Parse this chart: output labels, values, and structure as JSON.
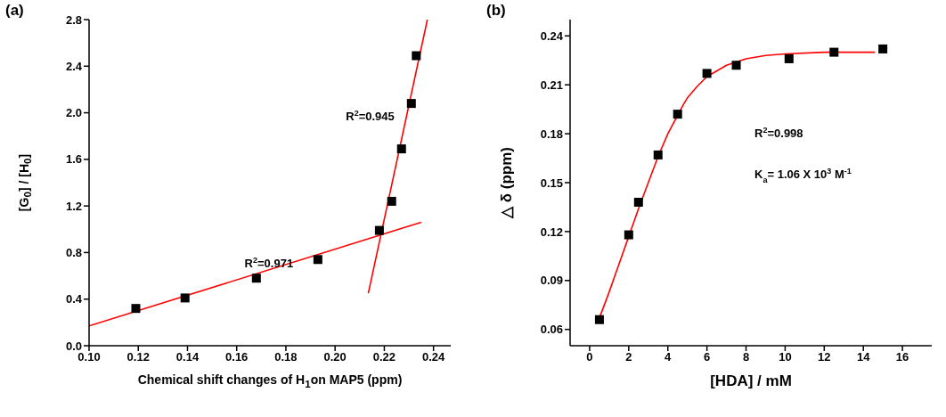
{
  "chart_data": [
    {
      "type": "scatter",
      "title": "(a)",
      "xlabel": "Chemical shift changes of H$_{1}$on MAP5 (ppm)",
      "ylabel": "[G$_{0}$] / [H$_{0}$]",
      "xlim": [
        0.1,
        0.247
      ],
      "xticks": [
        {
          "value": 0.1,
          "label": "0.10"
        },
        0.12,
        0.14,
        0.16,
        0.18,
        {
          "value": 0.2,
          "label": "0.20"
        },
        0.22,
        0.24
      ],
      "ylim": [
        0,
        2.8
      ],
      "yticks": [
        {
          "value": 0,
          "label": "0.0"
        },
        0.4,
        0.8,
        1.2,
        1.6,
        {
          "value": 2,
          "label": "2.0"
        },
        2.4,
        2.8
      ],
      "marker": "square",
      "series": [
        {
          "color": "#000000",
          "x": [
            0.119,
            0.139,
            0.168,
            0.193,
            0.218,
            0.223,
            0.227,
            0.231,
            0.233
          ],
          "values": [
            0.32,
            0.41,
            0.58,
            0.74,
            0.99,
            1.24,
            1.69,
            2.08,
            2.49
          ]
        },
        {
          "type": "line",
          "color": "#ff0000",
          "marker": "none",
          "line_style": "solid",
          "x": [
            0.1,
            0.235
          ],
          "values": [
            0.17,
            1.06
          ]
        },
        {
          "type": "line",
          "color": "#ff0000",
          "marker": "none",
          "line_style": "solid",
          "x": [
            0.2135,
            0.2375
          ],
          "values": [
            0.45,
            2.8
          ]
        }
      ],
      "annotations": [
        "R$^{2}$=0.971",
        "R$^{2}$=0.945"
      ]
    },
    {
      "type": "scatter",
      "title": "(b)",
      "xlabel": "[HDA] / mM",
      "ylabel": "△ δ (ppm)",
      "xlim": [
        -1,
        17.5
      ],
      "xticks": [
        0,
        2,
        4,
        6,
        8,
        10,
        12,
        14,
        16
      ],
      "ylim": [
        0.05,
        0.25
      ],
      "yticks": [
        {
          "value": 0.06,
          "label": "0.06"
        },
        {
          "value": 0.09,
          "label": "0.09"
        },
        {
          "value": 0.12,
          "label": "0.12"
        },
        {
          "value": 0.15,
          "label": "0.15"
        },
        {
          "value": 0.18,
          "label": "0.18"
        },
        {
          "value": 0.21,
          "label": "0.21"
        },
        {
          "value": 0.24,
          "label": "0.24"
        }
      ],
      "marker": "square",
      "series": [
        {
          "color": "#000000",
          "x": [
            0.5,
            2,
            2.5,
            3.5,
            4.5,
            6,
            7.5,
            10.2,
            12.5,
            15
          ],
          "values": [
            0.066,
            0.118,
            0.138,
            0.167,
            0.192,
            0.217,
            0.222,
            0.226,
            0.23,
            0.232
          ]
        },
        {
          "type": "line",
          "color": "#ff0000",
          "marker": "none",
          "line_style": "solid",
          "x": [
            0.5,
            1,
            1.5,
            2,
            2.5,
            3,
            3.5,
            4,
            4.8,
            5,
            5.5,
            6,
            7,
            8,
            9,
            10,
            12,
            14.6
          ],
          "values": [
            0.067,
            0.083,
            0.1,
            0.117,
            0.134,
            0.15,
            0.166,
            0.18,
            0.198,
            0.202,
            0.209,
            0.215,
            0.222,
            0.226,
            0.228,
            0.229,
            0.23,
            0.23
          ]
        }
      ],
      "annotations": [
        "R$^{2}$=0.998",
        "K$_{a}$= 1.06 X 10$^{3}$ M$^{-1}$"
      ]
    }
  ]
}
